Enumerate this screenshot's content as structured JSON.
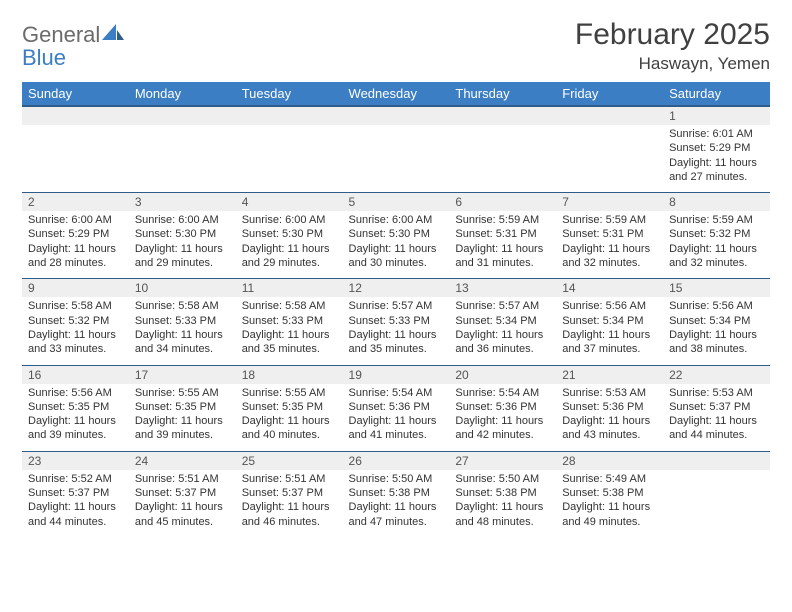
{
  "logo": {
    "text_main": "General",
    "text_sub": "Blue"
  },
  "header": {
    "month_title": "February 2025",
    "location": "Haswayn, Yemen"
  },
  "colors": {
    "header_bg": "#3b7ec4",
    "header_border": "#2f5d8a",
    "row_alt_bg": "#efefef",
    "text": "#333333",
    "title_text": "#404040",
    "logo_gray": "#6b6b6b",
    "logo_blue": "#3b7ec4"
  },
  "typography": {
    "month_title_size": 30,
    "location_size": 17,
    "day_header_size": 13,
    "day_num_size": 12,
    "body_size": 11
  },
  "days_of_week": [
    "Sunday",
    "Monday",
    "Tuesday",
    "Wednesday",
    "Thursday",
    "Friday",
    "Saturday"
  ],
  "weeks": [
    [
      null,
      null,
      null,
      null,
      null,
      null,
      {
        "num": "1",
        "sunrise": "Sunrise: 6:01 AM",
        "sunset": "Sunset: 5:29 PM",
        "daylight": "Daylight: 11 hours and 27 minutes."
      }
    ],
    [
      {
        "num": "2",
        "sunrise": "Sunrise: 6:00 AM",
        "sunset": "Sunset: 5:29 PM",
        "daylight": "Daylight: 11 hours and 28 minutes."
      },
      {
        "num": "3",
        "sunrise": "Sunrise: 6:00 AM",
        "sunset": "Sunset: 5:30 PM",
        "daylight": "Daylight: 11 hours and 29 minutes."
      },
      {
        "num": "4",
        "sunrise": "Sunrise: 6:00 AM",
        "sunset": "Sunset: 5:30 PM",
        "daylight": "Daylight: 11 hours and 29 minutes."
      },
      {
        "num": "5",
        "sunrise": "Sunrise: 6:00 AM",
        "sunset": "Sunset: 5:30 PM",
        "daylight": "Daylight: 11 hours and 30 minutes."
      },
      {
        "num": "6",
        "sunrise": "Sunrise: 5:59 AM",
        "sunset": "Sunset: 5:31 PM",
        "daylight": "Daylight: 11 hours and 31 minutes."
      },
      {
        "num": "7",
        "sunrise": "Sunrise: 5:59 AM",
        "sunset": "Sunset: 5:31 PM",
        "daylight": "Daylight: 11 hours and 32 minutes."
      },
      {
        "num": "8",
        "sunrise": "Sunrise: 5:59 AM",
        "sunset": "Sunset: 5:32 PM",
        "daylight": "Daylight: 11 hours and 32 minutes."
      }
    ],
    [
      {
        "num": "9",
        "sunrise": "Sunrise: 5:58 AM",
        "sunset": "Sunset: 5:32 PM",
        "daylight": "Daylight: 11 hours and 33 minutes."
      },
      {
        "num": "10",
        "sunrise": "Sunrise: 5:58 AM",
        "sunset": "Sunset: 5:33 PM",
        "daylight": "Daylight: 11 hours and 34 minutes."
      },
      {
        "num": "11",
        "sunrise": "Sunrise: 5:58 AM",
        "sunset": "Sunset: 5:33 PM",
        "daylight": "Daylight: 11 hours and 35 minutes."
      },
      {
        "num": "12",
        "sunrise": "Sunrise: 5:57 AM",
        "sunset": "Sunset: 5:33 PM",
        "daylight": "Daylight: 11 hours and 35 minutes."
      },
      {
        "num": "13",
        "sunrise": "Sunrise: 5:57 AM",
        "sunset": "Sunset: 5:34 PM",
        "daylight": "Daylight: 11 hours and 36 minutes."
      },
      {
        "num": "14",
        "sunrise": "Sunrise: 5:56 AM",
        "sunset": "Sunset: 5:34 PM",
        "daylight": "Daylight: 11 hours and 37 minutes."
      },
      {
        "num": "15",
        "sunrise": "Sunrise: 5:56 AM",
        "sunset": "Sunset: 5:34 PM",
        "daylight": "Daylight: 11 hours and 38 minutes."
      }
    ],
    [
      {
        "num": "16",
        "sunrise": "Sunrise: 5:56 AM",
        "sunset": "Sunset: 5:35 PM",
        "daylight": "Daylight: 11 hours and 39 minutes."
      },
      {
        "num": "17",
        "sunrise": "Sunrise: 5:55 AM",
        "sunset": "Sunset: 5:35 PM",
        "daylight": "Daylight: 11 hours and 39 minutes."
      },
      {
        "num": "18",
        "sunrise": "Sunrise: 5:55 AM",
        "sunset": "Sunset: 5:35 PM",
        "daylight": "Daylight: 11 hours and 40 minutes."
      },
      {
        "num": "19",
        "sunrise": "Sunrise: 5:54 AM",
        "sunset": "Sunset: 5:36 PM",
        "daylight": "Daylight: 11 hours and 41 minutes."
      },
      {
        "num": "20",
        "sunrise": "Sunrise: 5:54 AM",
        "sunset": "Sunset: 5:36 PM",
        "daylight": "Daylight: 11 hours and 42 minutes."
      },
      {
        "num": "21",
        "sunrise": "Sunrise: 5:53 AM",
        "sunset": "Sunset: 5:36 PM",
        "daylight": "Daylight: 11 hours and 43 minutes."
      },
      {
        "num": "22",
        "sunrise": "Sunrise: 5:53 AM",
        "sunset": "Sunset: 5:37 PM",
        "daylight": "Daylight: 11 hours and 44 minutes."
      }
    ],
    [
      {
        "num": "23",
        "sunrise": "Sunrise: 5:52 AM",
        "sunset": "Sunset: 5:37 PM",
        "daylight": "Daylight: 11 hours and 44 minutes."
      },
      {
        "num": "24",
        "sunrise": "Sunrise: 5:51 AM",
        "sunset": "Sunset: 5:37 PM",
        "daylight": "Daylight: 11 hours and 45 minutes."
      },
      {
        "num": "25",
        "sunrise": "Sunrise: 5:51 AM",
        "sunset": "Sunset: 5:37 PM",
        "daylight": "Daylight: 11 hours and 46 minutes."
      },
      {
        "num": "26",
        "sunrise": "Sunrise: 5:50 AM",
        "sunset": "Sunset: 5:38 PM",
        "daylight": "Daylight: 11 hours and 47 minutes."
      },
      {
        "num": "27",
        "sunrise": "Sunrise: 5:50 AM",
        "sunset": "Sunset: 5:38 PM",
        "daylight": "Daylight: 11 hours and 48 minutes."
      },
      {
        "num": "28",
        "sunrise": "Sunrise: 5:49 AM",
        "sunset": "Sunset: 5:38 PM",
        "daylight": "Daylight: 11 hours and 49 minutes."
      },
      null
    ]
  ]
}
